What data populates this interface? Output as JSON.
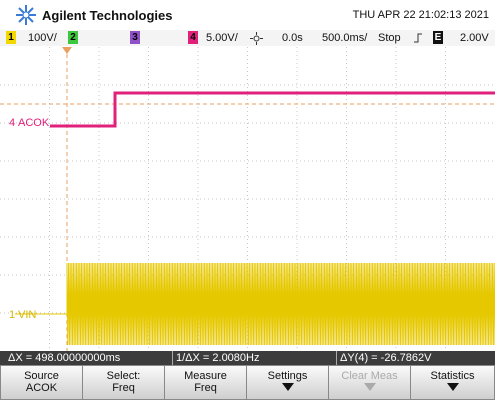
{
  "header": {
    "brand": "Agilent Technologies",
    "datetime": "THU APR 22 21:02:13 2021"
  },
  "status": {
    "ch1": "1",
    "ch1_scale": "100V/",
    "ch2": "2",
    "ch3": "3",
    "ch4": "4",
    "ch4_scale": "5.00V/",
    "delay": "0.0s",
    "timebase": "500.0ms/",
    "run_state": "Stop",
    "trigger_source": "E",
    "trigger_level": "2.00V"
  },
  "traces": [
    {
      "number": "4",
      "label": "ACOK"
    },
    {
      "number": "1",
      "label": "VIN"
    }
  ],
  "measurements": {
    "delta_x": "ΔX = 498.00000000ms",
    "inverse_delta_x": "1/ΔX = 2.0080Hz",
    "delta_y": "ΔY(4) = -26.7862V"
  },
  "softkeys": [
    {
      "line1": "Source",
      "line2": "ACOK"
    },
    {
      "line1": "Select:",
      "line2": "Freq"
    },
    {
      "line1": "Measure",
      "line2": "Freq"
    },
    {
      "line1": "Settings"
    },
    {
      "line1": "Clear Meas"
    },
    {
      "line1": "Statistics"
    }
  ]
}
